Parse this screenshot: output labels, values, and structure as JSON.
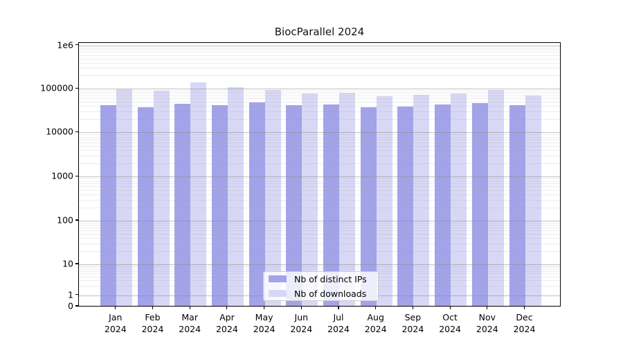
{
  "title": "BiocParallel 2024",
  "y_axis": {
    "ticks": [
      {
        "label": "1e6",
        "value": 1000000
      },
      {
        "label": "100000",
        "value": 100000
      },
      {
        "label": "10000",
        "value": 10000
      },
      {
        "label": "1000",
        "value": 1000
      },
      {
        "label": "100",
        "value": 100
      },
      {
        "label": "10",
        "value": 10
      },
      {
        "label": "1",
        "value": 1
      },
      {
        "label": "0",
        "value": 0
      }
    ]
  },
  "x_axis": {
    "year": "2024",
    "months": [
      "Jan",
      "Feb",
      "Mar",
      "Apr",
      "May",
      "Jun",
      "Jul",
      "Aug",
      "Sep",
      "Oct",
      "Nov",
      "Dec"
    ]
  },
  "legend": [
    {
      "label": "Nb of distinct IPs",
      "color": "#a3a3ea"
    },
    {
      "label": "Nb of downloads",
      "color": "#d8d8f6"
    }
  ],
  "colors": {
    "distinct_ips": "#a3a3ea",
    "downloads": "#d8d8f6",
    "grid_major": "#c3c3c3",
    "grid_minor": "#ebebeb"
  },
  "chart_data": {
    "type": "bar",
    "title": "BiocParallel 2024",
    "categories": [
      "Jan 2024",
      "Feb 2024",
      "Mar 2024",
      "Apr 2024",
      "May 2024",
      "Jun 2024",
      "Jul 2024",
      "Aug 2024",
      "Sep 2024",
      "Oct 2024",
      "Nov 2024",
      "Dec 2024"
    ],
    "series": [
      {
        "name": "Nb of distinct IPs",
        "color": "#a3a3ea",
        "values": [
          39900,
          36100,
          43300,
          40700,
          47000,
          40700,
          42200,
          36100,
          37400,
          42200,
          45400,
          39900
        ]
      },
      {
        "name": "Nb of downloads",
        "color": "#d8d8f6",
        "values": [
          94500,
          86000,
          134000,
          106000,
          89000,
          76000,
          78400,
          65300,
          70300,
          76700,
          90600,
          68700
        ]
      }
    ],
    "ylabel": "",
    "xlabel": "",
    "yscale": "log (symlog-style, 0 shown at baseline)",
    "ylim": [
      0,
      1000000
    ],
    "grid": "major and minor horizontal gridlines drawn above bars",
    "legend_position": "lower center inside plot"
  }
}
